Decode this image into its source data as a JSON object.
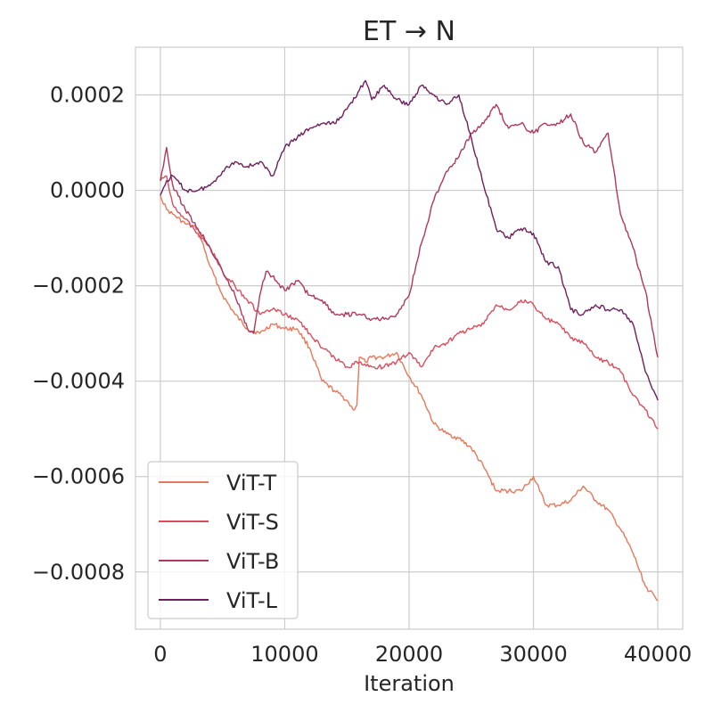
{
  "chart_data": {
    "type": "line",
    "title": "ET → N",
    "xlabel": "Iteration",
    "ylabel": "",
    "xlim": [
      -2000,
      42000
    ],
    "ylim": [
      -0.00092,
      0.0003
    ],
    "x_ticks": [
      0,
      10000,
      20000,
      30000,
      40000
    ],
    "x_tick_labels": [
      "0",
      "10000",
      "20000",
      "30000",
      "40000"
    ],
    "y_ticks": [
      0.0002,
      0.0,
      -0.0002,
      -0.0004,
      -0.0006,
      -0.0008
    ],
    "y_tick_labels": [
      "0.0002",
      "0.0000",
      "−0.0002",
      "−0.0004",
      "−0.0006",
      "−0.0008"
    ],
    "grid": true,
    "legend_position": "bottom-left",
    "series": [
      {
        "name": "ViT-T",
        "color": "#e8785a",
        "x": [
          0,
          500,
          1000,
          2000,
          3000,
          4000,
          5000,
          6000,
          7000,
          8000,
          9000,
          10000,
          11000,
          12000,
          13000,
          14000,
          15000,
          15500,
          15800,
          16000,
          16500,
          17000,
          18000,
          19000,
          20000,
          21000,
          22000,
          23000,
          24000,
          25000,
          26000,
          27000,
          28000,
          29000,
          30000,
          30500,
          31000,
          32000,
          33000,
          34000,
          35000,
          36000,
          37000,
          38000,
          39000,
          40000
        ],
        "y": [
          -1e-05,
          -4e-05,
          -5e-05,
          -7e-05,
          -8e-05,
          -0.00016,
          -0.00022,
          -0.00026,
          -0.00029,
          -0.0003,
          -0.00028,
          -0.00029,
          -0.00029,
          -0.00033,
          -0.0004,
          -0.00042,
          -0.00044,
          -0.00046,
          -0.00045,
          -0.00035,
          -0.00036,
          -0.00035,
          -0.00035,
          -0.00034,
          -0.00039,
          -0.00043,
          -0.00049,
          -0.00051,
          -0.00052,
          -0.00054,
          -0.00058,
          -0.00063,
          -0.00063,
          -0.00063,
          -0.0006,
          -0.00063,
          -0.00066,
          -0.00066,
          -0.00065,
          -0.00062,
          -0.00065,
          -0.00067,
          -0.00071,
          -0.00076,
          -0.00083,
          -0.00086
        ]
      },
      {
        "name": "ViT-S",
        "color": "#d94e5d",
        "x": [
          0,
          500,
          1000,
          2000,
          3000,
          4000,
          5000,
          6000,
          7000,
          8000,
          9000,
          10000,
          11000,
          12000,
          13000,
          14000,
          15000,
          16000,
          17000,
          18000,
          19000,
          20000,
          21000,
          22000,
          23000,
          24000,
          25000,
          26000,
          27000,
          28000,
          29000,
          30000,
          31000,
          32000,
          33000,
          34000,
          35000,
          36000,
          37000,
          38000,
          39000,
          40000
        ],
        "y": [
          2e-05,
          3e-05,
          -3e-05,
          -6e-05,
          -9e-05,
          -0.00012,
          -0.00017,
          -0.0002,
          -0.00023,
          -0.00026,
          -0.00025,
          -0.00026,
          -0.00027,
          -0.0003,
          -0.00033,
          -0.00035,
          -0.00037,
          -0.00036,
          -0.00037,
          -0.00037,
          -0.00036,
          -0.00034,
          -0.00037,
          -0.00033,
          -0.00032,
          -0.0003,
          -0.00029,
          -0.00028,
          -0.00024,
          -0.00025,
          -0.00023,
          -0.00024,
          -0.00027,
          -0.00028,
          -0.00031,
          -0.00032,
          -0.00035,
          -0.00036,
          -0.00038,
          -0.00043,
          -0.00046,
          -0.0005
        ]
      },
      {
        "name": "ViT-B",
        "color": "#b0375e",
        "x": [
          0,
          500,
          1000,
          2000,
          3000,
          4000,
          5000,
          6000,
          7000,
          7500,
          8000,
          8500,
          9000,
          10000,
          11000,
          12000,
          13000,
          14000,
          15000,
          16000,
          17000,
          18000,
          19000,
          20000,
          21000,
          22000,
          23000,
          24000,
          25000,
          26000,
          27000,
          28000,
          29000,
          30000,
          31000,
          32000,
          33000,
          34000,
          35000,
          36000,
          37000,
          38000,
          39000,
          40000
        ],
        "y": [
          2e-05,
          9e-05,
          1e-05,
          -4e-05,
          -8e-05,
          -0.00012,
          -0.00017,
          -0.00022,
          -0.00029,
          -0.0003,
          -0.00022,
          -0.00017,
          -0.00018,
          -0.00021,
          -0.00019,
          -0.00022,
          -0.00023,
          -0.00026,
          -0.00026,
          -0.00026,
          -0.00027,
          -0.00027,
          -0.00026,
          -0.00022,
          -0.00011,
          -2e-05,
          4e-05,
          7e-05,
          0.00012,
          0.00014,
          0.00018,
          0.00013,
          0.00014,
          0.00012,
          0.00014,
          0.00014,
          0.00016,
          0.0001,
          8e-05,
          0.00012,
          -5e-05,
          -0.00012,
          -0.00021,
          -0.00035
        ]
      },
      {
        "name": "ViT-L",
        "color": "#6f1f5e",
        "x": [
          0,
          500,
          1000,
          2000,
          3000,
          4000,
          5000,
          6000,
          7000,
          8000,
          9000,
          10000,
          11000,
          12000,
          13000,
          14000,
          15000,
          16000,
          16500,
          17000,
          18000,
          19000,
          20000,
          21000,
          22000,
          23000,
          24000,
          25000,
          26000,
          27000,
          28000,
          29000,
          30000,
          31000,
          32000,
          33000,
          34000,
          35000,
          36000,
          37000,
          38000,
          39000,
          40000
        ],
        "y": [
          -1e-05,
          2e-05,
          3e-05,
          0.0,
          0.0,
          1e-05,
          4e-05,
          6e-05,
          5e-05,
          6e-05,
          3e-05,
          9e-05,
          0.00011,
          0.00013,
          0.00014,
          0.00014,
          0.00017,
          0.00021,
          0.00023,
          0.00019,
          0.00022,
          0.00019,
          0.00018,
          0.00022,
          0.0002,
          0.00018,
          0.0002,
          0.00011,
          1e-05,
          -8e-05,
          -0.0001,
          -8e-05,
          -9e-05,
          -0.00015,
          -0.00016,
          -0.00025,
          -0.00026,
          -0.00024,
          -0.00025,
          -0.00025,
          -0.00028,
          -0.00038,
          -0.00044
        ]
      }
    ]
  }
}
